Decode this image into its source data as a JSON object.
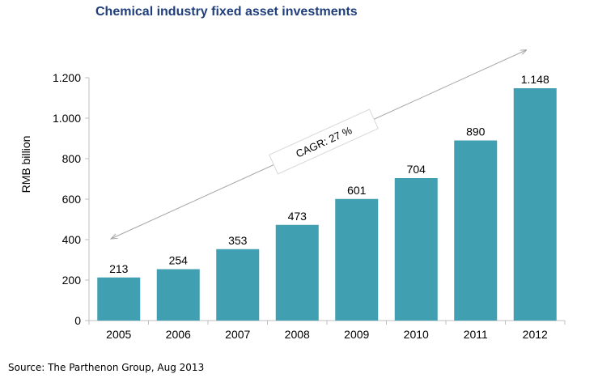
{
  "chart_data": {
    "type": "bar",
    "title": "Chemical industry fixed asset investments",
    "ylabel": "RMB billion",
    "xlabel": "",
    "categories": [
      "2005",
      "2006",
      "2007",
      "2008",
      "2009",
      "2010",
      "2011",
      "2012"
    ],
    "values": [
      213,
      254,
      353,
      473,
      601,
      704,
      890,
      1148
    ],
    "value_labels": [
      "213",
      "254",
      "353",
      "473",
      "601",
      "704",
      "890",
      "1.148"
    ],
    "ylim": [
      0,
      1200
    ],
    "yticks": [
      0,
      200,
      400,
      600,
      800,
      1000,
      1200
    ],
    "ytick_labels": [
      "0",
      "200",
      "400",
      "600",
      "800",
      "1.000",
      "1.200"
    ],
    "grid": false,
    "bar_color": "#409fb0",
    "annotation": "CAGR: 27 %"
  },
  "source": "Source: The Parthenon Group, Aug 2013"
}
